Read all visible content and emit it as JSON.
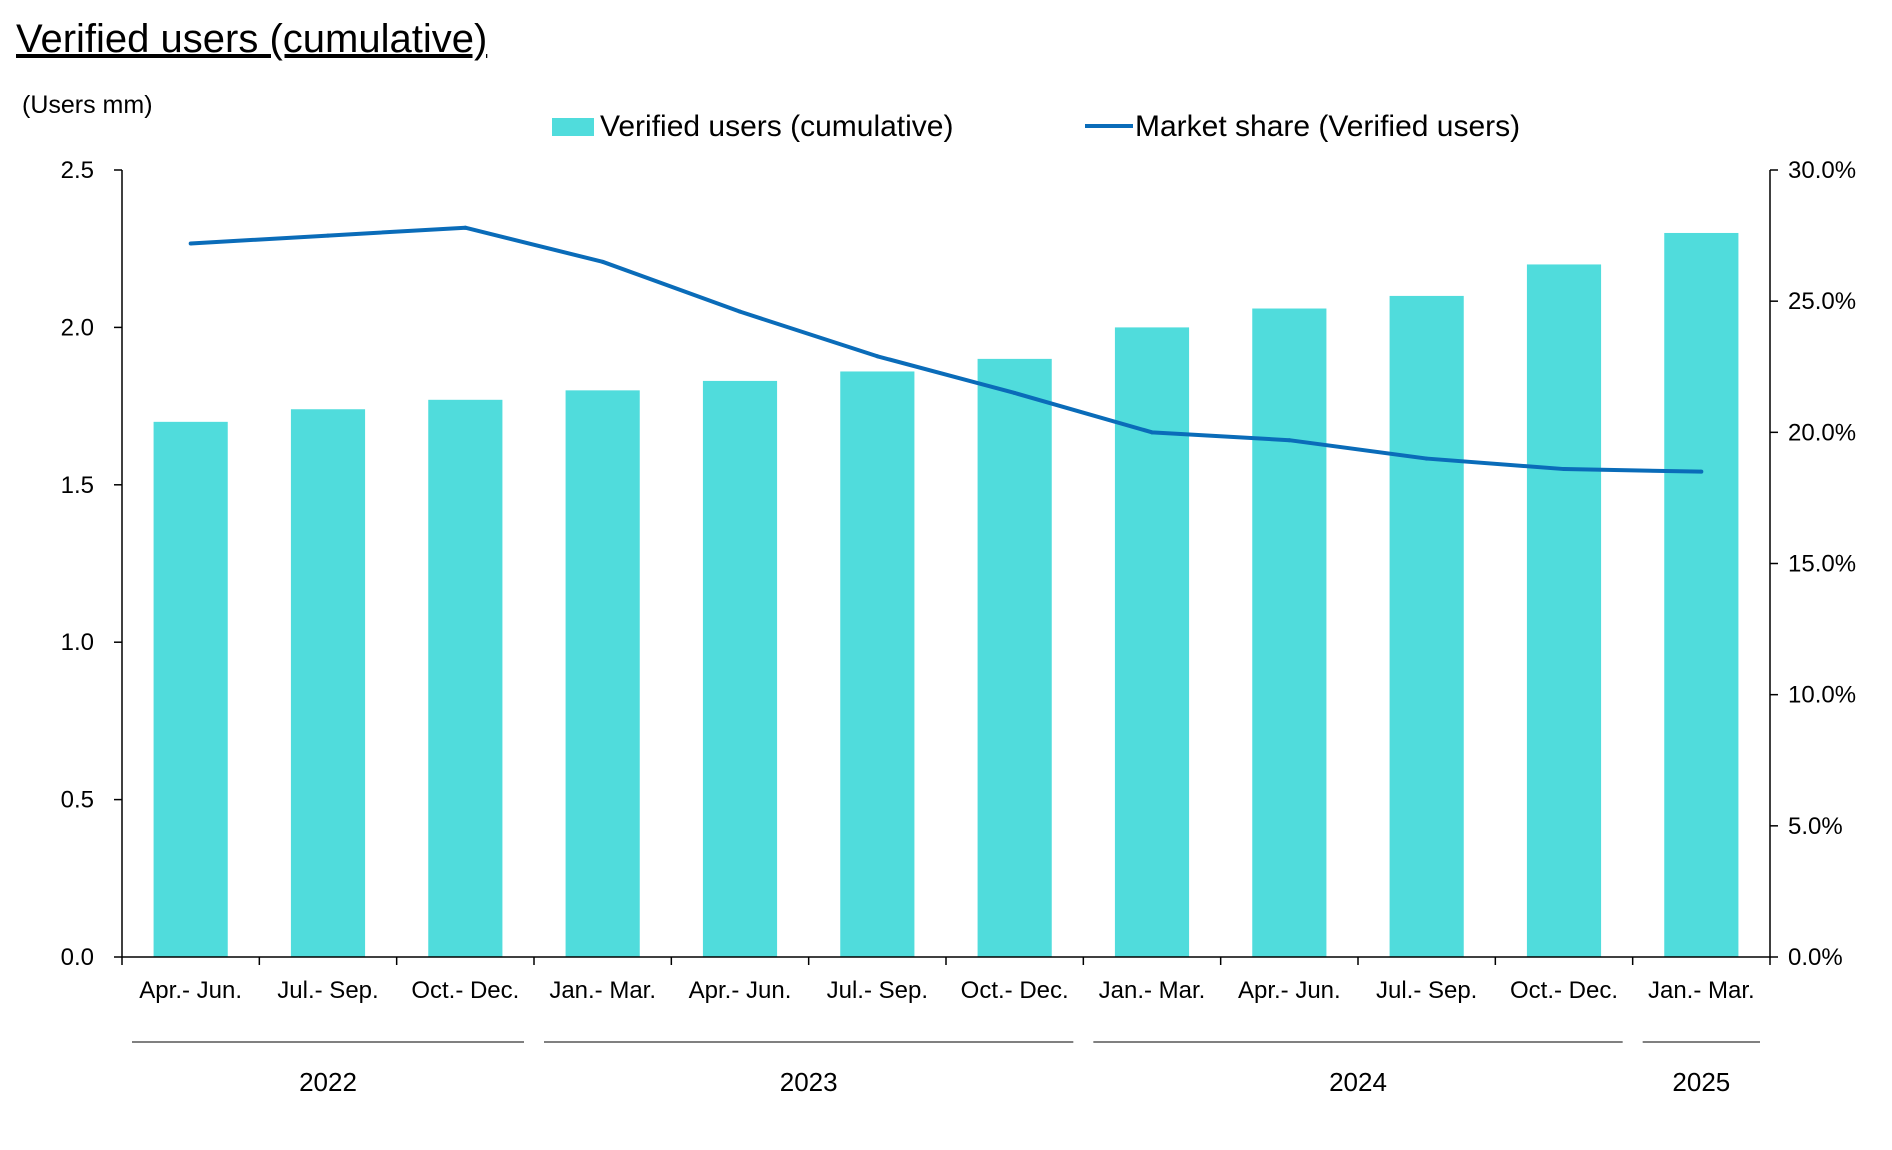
{
  "chart_data": {
    "type": "bar",
    "title": "Verified users (cumulative)",
    "unit_label": "(Users mm)",
    "categories": [
      "Apr.- Jun.",
      "Jul.-  Sep.",
      "Oct.- Dec.",
      "Jan.- Mar.",
      "Apr.- Jun.",
      "Jul.-  Sep.",
      "Oct.- Dec.",
      "Jan.- Mar.",
      "Apr.- Jun.",
      "Jul.-  Sep.",
      "Oct.- Dec.",
      "Jan.- Mar."
    ],
    "year_groups": [
      {
        "label": "2022",
        "start": 0,
        "end": 2
      },
      {
        "label": "2023",
        "start": 3,
        "end": 6
      },
      {
        "label": "2024",
        "start": 7,
        "end": 10
      },
      {
        "label": "2025",
        "start": 11,
        "end": 11
      }
    ],
    "series": [
      {
        "name": "Verified users (cumulative)",
        "kind": "bar",
        "axis": "left",
        "color": "#50DCDC",
        "values": [
          1.7,
          1.74,
          1.77,
          1.8,
          1.83,
          1.86,
          1.9,
          2.0,
          2.06,
          2.1,
          2.2,
          2.3
        ]
      },
      {
        "name": "Market share (Verified users)",
        "kind": "line",
        "axis": "right",
        "color": "#0A6CB9",
        "values": [
          27.2,
          27.5,
          27.8,
          26.5,
          24.6,
          22.9,
          21.5,
          20.0,
          19.7,
          19.0,
          18.6,
          18.5
        ]
      }
    ],
    "y_left": {
      "min": 0,
      "max": 2.5,
      "ticks": [
        "0.0",
        "0.5",
        "1.0",
        "1.5",
        "2.0",
        "2.5"
      ]
    },
    "y_right": {
      "min": 0,
      "max": 30,
      "ticks": [
        "0.0%",
        "5.0%",
        "10.0%",
        "15.0%",
        "20.0%",
        "25.0%",
        "30.0%"
      ]
    },
    "legend_position": "top-center",
    "grid": false
  }
}
